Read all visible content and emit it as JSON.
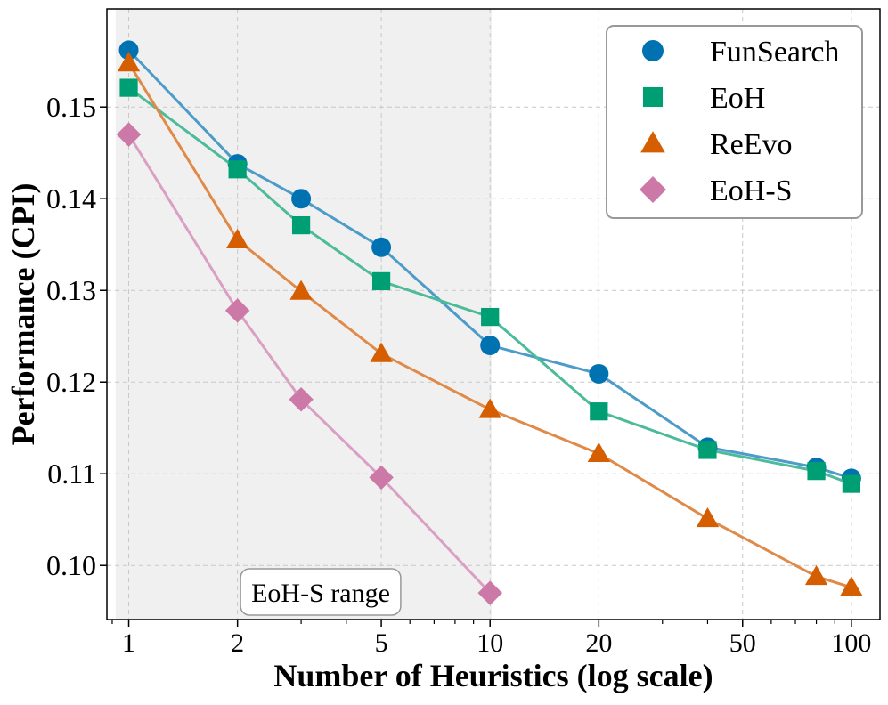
{
  "chart_data": {
    "type": "line",
    "title": "",
    "xlabel": "Number of Heuristics (log scale)",
    "ylabel": "Performance (CPI)",
    "x_scale": "log",
    "xlim": [
      0.87,
      120
    ],
    "ylim": [
      0.0941,
      0.1607
    ],
    "x_ticks": [
      1,
      2,
      5,
      10,
      20,
      50,
      100
    ],
    "x_tick_labels": [
      "1",
      "2",
      "5",
      "10",
      "20",
      "50",
      "100"
    ],
    "y_ticks": [
      0.1,
      0.11,
      0.12,
      0.13,
      0.14,
      0.15
    ],
    "y_tick_labels": [
      "0.10",
      "0.11",
      "0.12",
      "0.13",
      "0.14",
      "0.15"
    ],
    "grid": true,
    "legend_position": "top-right",
    "shaded_region": {
      "x_start": 0.92,
      "x_end": 10.1,
      "label": "EoH-S range",
      "color": "#f0f0f0"
    },
    "series": [
      {
        "name": "FunSearch",
        "marker": "circle",
        "color": "#0072B2",
        "line_color": "#4c9bc9",
        "x": [
          1,
          2,
          3,
          5,
          10,
          20,
          40,
          80,
          100
        ],
        "y": [
          0.1562,
          0.1438,
          0.14,
          0.1347,
          0.124,
          0.1209,
          0.1129,
          0.1107,
          0.1095
        ]
      },
      {
        "name": "EoH",
        "marker": "square",
        "color": "#009E73",
        "line_color": "#4dbb9a",
        "x": [
          1,
          2,
          3,
          5,
          10,
          20,
          40,
          80,
          100
        ],
        "y": [
          0.1521,
          0.1432,
          0.1371,
          0.131,
          0.1271,
          0.1168,
          0.1126,
          0.1103,
          0.1089
        ]
      },
      {
        "name": "ReEvo",
        "marker": "triangle",
        "color": "#D55E00",
        "line_color": "#e08a4a",
        "x": [
          1,
          2,
          3,
          5,
          10,
          20,
          40,
          80,
          100
        ],
        "y": [
          0.1548,
          0.1355,
          0.1299,
          0.1231,
          0.117,
          0.1122,
          0.1051,
          0.0988,
          0.0976
        ]
      },
      {
        "name": "EoH-S",
        "marker": "diamond",
        "color": "#CC79A7",
        "line_color": "#da9fc4",
        "x": [
          1,
          2,
          3,
          5,
          10
        ],
        "y": [
          0.147,
          0.1278,
          0.1181,
          0.1096,
          0.097
        ]
      }
    ]
  }
}
